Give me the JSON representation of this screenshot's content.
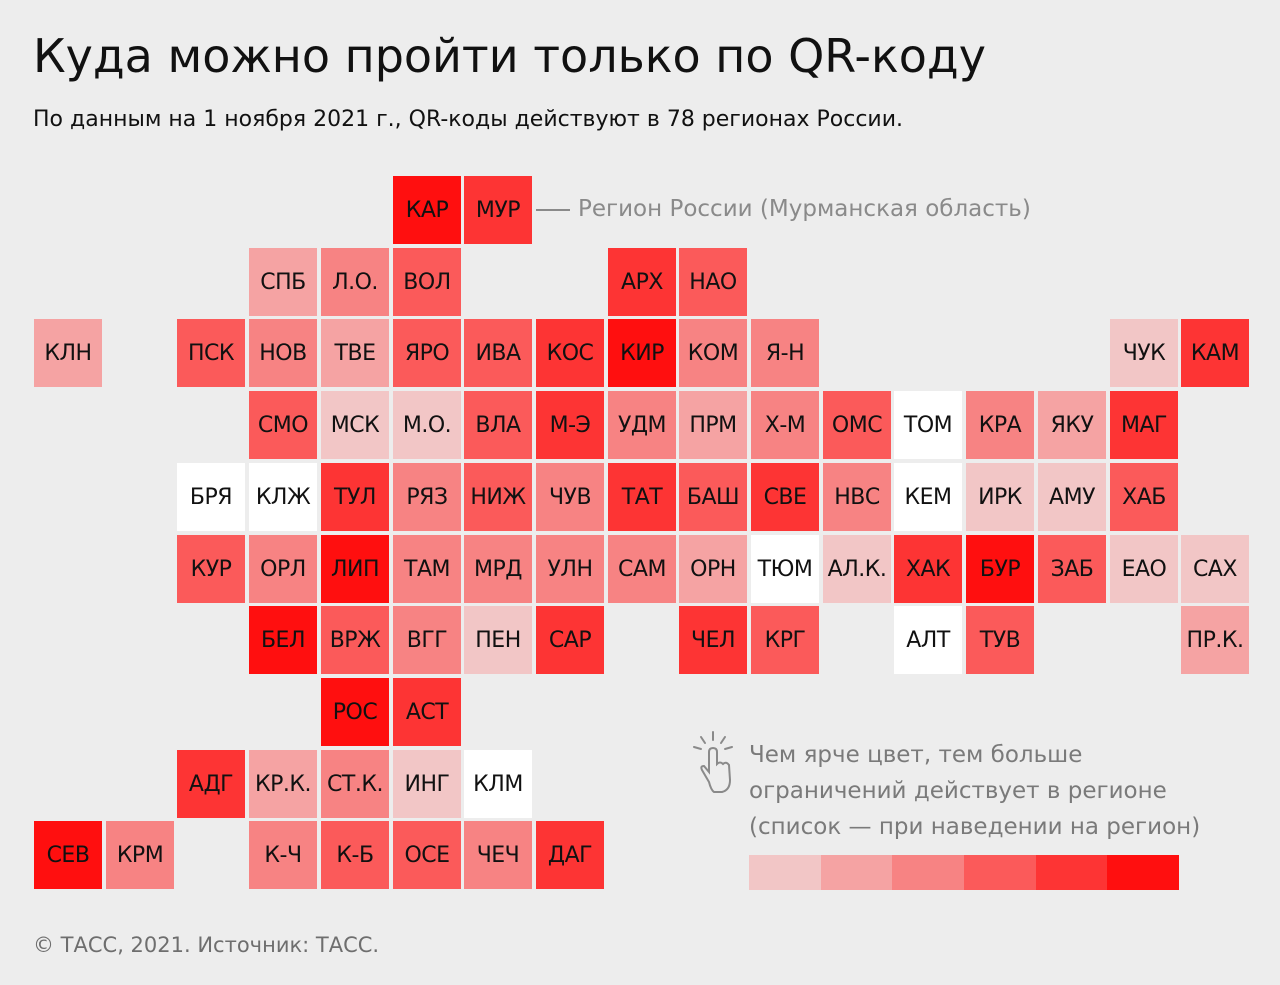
{
  "title": "Куда можно пройти только по QR-коду",
  "subtitle": "По данным на 1 ноября 2021 г., QR-коды действуют в 78 регионах России.",
  "annotation": "Регион России (Мурманская область)",
  "legend": {
    "lines": [
      "Чем ярче цвет, тем больше",
      "ограничений действует в регионе",
      "(список — при наведении на регион)"
    ],
    "icon": "pointer-hand-icon",
    "scale_colors": [
      "#f2c6c6",
      "#f5a3a3",
      "#f78383",
      "#fb5a5a",
      "#fd3434",
      "#ff0f0f"
    ]
  },
  "footer": "© ТАСС, 2021. Источник: ТАСС.",
  "levels": [
    "#ffffff",
    "#f2c6c6",
    "#f5a3a3",
    "#f78383",
    "#fb5a5a",
    "#fd3434",
    "#ff0f0f"
  ],
  "regions": [
    {
      "code": "КАР",
      "row": 0,
      "col": 5,
      "level": 6
    },
    {
      "code": "МУР",
      "row": 0,
      "col": 6,
      "level": 5
    },
    {
      "code": "СПБ",
      "row": 1,
      "col": 3,
      "level": 2
    },
    {
      "code": "Л.О.",
      "row": 1,
      "col": 4,
      "level": 3
    },
    {
      "code": "ВОЛ",
      "row": 1,
      "col": 5,
      "level": 4
    },
    {
      "code": "АРХ",
      "row": 1,
      "col": 8,
      "level": 5
    },
    {
      "code": "НАО",
      "row": 1,
      "col": 9,
      "level": 4
    },
    {
      "code": "КЛН",
      "row": 2,
      "col": 0,
      "level": 2
    },
    {
      "code": "ПСК",
      "row": 2,
      "col": 2,
      "level": 4
    },
    {
      "code": "НОВ",
      "row": 2,
      "col": 3,
      "level": 3
    },
    {
      "code": "ТВЕ",
      "row": 2,
      "col": 4,
      "level": 2
    },
    {
      "code": "ЯРО",
      "row": 2,
      "col": 5,
      "level": 4
    },
    {
      "code": "ИВА",
      "row": 2,
      "col": 6,
      "level": 4
    },
    {
      "code": "КОС",
      "row": 2,
      "col": 7,
      "level": 5
    },
    {
      "code": "КИР",
      "row": 2,
      "col": 8,
      "level": 6
    },
    {
      "code": "КОМ",
      "row": 2,
      "col": 9,
      "level": 3
    },
    {
      "code": "Я-Н",
      "row": 2,
      "col": 10,
      "level": 3
    },
    {
      "code": "ЧУК",
      "row": 2,
      "col": 15,
      "level": 1
    },
    {
      "code": "КАМ",
      "row": 2,
      "col": 16,
      "level": 5
    },
    {
      "code": "СМО",
      "row": 3,
      "col": 3,
      "level": 4
    },
    {
      "code": "МСК",
      "row": 3,
      "col": 4,
      "level": 1
    },
    {
      "code": "М.О.",
      "row": 3,
      "col": 5,
      "level": 1
    },
    {
      "code": "ВЛА",
      "row": 3,
      "col": 6,
      "level": 4
    },
    {
      "code": "М-Э",
      "row": 3,
      "col": 7,
      "level": 5
    },
    {
      "code": "УДМ",
      "row": 3,
      "col": 8,
      "level": 3
    },
    {
      "code": "ПРМ",
      "row": 3,
      "col": 9,
      "level": 2
    },
    {
      "code": "Х-М",
      "row": 3,
      "col": 10,
      "level": 3
    },
    {
      "code": "ОМС",
      "row": 3,
      "col": 11,
      "level": 4
    },
    {
      "code": "ТОМ",
      "row": 3,
      "col": 12,
      "level": 0
    },
    {
      "code": "КРА",
      "row": 3,
      "col": 13,
      "level": 3
    },
    {
      "code": "ЯКУ",
      "row": 3,
      "col": 14,
      "level": 2
    },
    {
      "code": "МАГ",
      "row": 3,
      "col": 15,
      "level": 5
    },
    {
      "code": "БРЯ",
      "row": 4,
      "col": 2,
      "level": 0
    },
    {
      "code": "КЛЖ",
      "row": 4,
      "col": 3,
      "level": 0
    },
    {
      "code": "ТУЛ",
      "row": 4,
      "col": 4,
      "level": 5
    },
    {
      "code": "РЯЗ",
      "row": 4,
      "col": 5,
      "level": 3
    },
    {
      "code": "НИЖ",
      "row": 4,
      "col": 6,
      "level": 4
    },
    {
      "code": "ЧУВ",
      "row": 4,
      "col": 7,
      "level": 3
    },
    {
      "code": "ТАТ",
      "row": 4,
      "col": 8,
      "level": 5
    },
    {
      "code": "БАШ",
      "row": 4,
      "col": 9,
      "level": 4
    },
    {
      "code": "СВЕ",
      "row": 4,
      "col": 10,
      "level": 5
    },
    {
      "code": "НВС",
      "row": 4,
      "col": 11,
      "level": 3
    },
    {
      "code": "КЕМ",
      "row": 4,
      "col": 12,
      "level": 0
    },
    {
      "code": "ИРК",
      "row": 4,
      "col": 13,
      "level": 1
    },
    {
      "code": "АМУ",
      "row": 4,
      "col": 14,
      "level": 1
    },
    {
      "code": "ХАБ",
      "row": 4,
      "col": 15,
      "level": 4
    },
    {
      "code": "КУР",
      "row": 5,
      "col": 2,
      "level": 4
    },
    {
      "code": "ОРЛ",
      "row": 5,
      "col": 3,
      "level": 3
    },
    {
      "code": "ЛИП",
      "row": 5,
      "col": 4,
      "level": 6
    },
    {
      "code": "ТАМ",
      "row": 5,
      "col": 5,
      "level": 3
    },
    {
      "code": "МРД",
      "row": 5,
      "col": 6,
      "level": 3
    },
    {
      "code": "УЛН",
      "row": 5,
      "col": 7,
      "level": 3
    },
    {
      "code": "САМ",
      "row": 5,
      "col": 8,
      "level": 3
    },
    {
      "code": "ОРН",
      "row": 5,
      "col": 9,
      "level": 2
    },
    {
      "code": "ТЮМ",
      "row": 5,
      "col": 10,
      "level": 0
    },
    {
      "code": "АЛ.К.",
      "row": 5,
      "col": 11,
      "level": 1
    },
    {
      "code": "ХАК",
      "row": 5,
      "col": 12,
      "level": 5
    },
    {
      "code": "БУР",
      "row": 5,
      "col": 13,
      "level": 6
    },
    {
      "code": "ЗАБ",
      "row": 5,
      "col": 14,
      "level": 4
    },
    {
      "code": "ЕАО",
      "row": 5,
      "col": 15,
      "level": 1
    },
    {
      "code": "САХ",
      "row": 5,
      "col": 16,
      "level": 1
    },
    {
      "code": "БЕЛ",
      "row": 6,
      "col": 3,
      "level": 6
    },
    {
      "code": "ВРЖ",
      "row": 6,
      "col": 4,
      "level": 4
    },
    {
      "code": "ВГГ",
      "row": 6,
      "col": 5,
      "level": 3
    },
    {
      "code": "ПЕН",
      "row": 6,
      "col": 6,
      "level": 1
    },
    {
      "code": "САР",
      "row": 6,
      "col": 7,
      "level": 5
    },
    {
      "code": "ЧЕЛ",
      "row": 6,
      "col": 9,
      "level": 5
    },
    {
      "code": "КРГ",
      "row": 6,
      "col": 10,
      "level": 4
    },
    {
      "code": "АЛТ",
      "row": 6,
      "col": 12,
      "level": 0
    },
    {
      "code": "ТУВ",
      "row": 6,
      "col": 13,
      "level": 4
    },
    {
      "code": "ПР.К.",
      "row": 6,
      "col": 16,
      "level": 2
    },
    {
      "code": "РОС",
      "row": 7,
      "col": 4,
      "level": 6
    },
    {
      "code": "АСТ",
      "row": 7,
      "col": 5,
      "level": 5
    },
    {
      "code": "АДГ",
      "row": 8,
      "col": 2,
      "level": 5
    },
    {
      "code": "КР.К.",
      "row": 8,
      "col": 3,
      "level": 2
    },
    {
      "code": "СТ.К.",
      "row": 8,
      "col": 4,
      "level": 3
    },
    {
      "code": "ИНГ",
      "row": 8,
      "col": 5,
      "level": 1
    },
    {
      "code": "КЛМ",
      "row": 8,
      "col": 6,
      "level": 0
    },
    {
      "code": "СЕВ",
      "row": 9,
      "col": 0,
      "level": 6
    },
    {
      "code": "КРМ",
      "row": 9,
      "col": 1,
      "level": 3
    },
    {
      "code": "К-Ч",
      "row": 9,
      "col": 3,
      "level": 3
    },
    {
      "code": "К-Б",
      "row": 9,
      "col": 4,
      "level": 4
    },
    {
      "code": "ОСЕ",
      "row": 9,
      "col": 5,
      "level": 4
    },
    {
      "code": "ЧЕЧ",
      "row": 9,
      "col": 6,
      "level": 3
    },
    {
      "code": "ДАГ",
      "row": 9,
      "col": 7,
      "level": 5
    }
  ]
}
